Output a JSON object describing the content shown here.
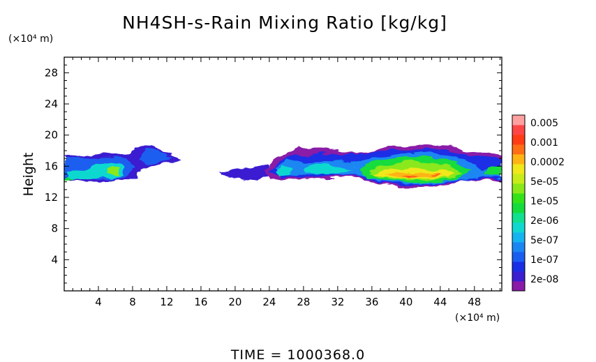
{
  "chart_data": {
    "type": "heatmap",
    "title": "NH4SH-s-Rain Mixing Ratio [kg/kg]",
    "xlabel": "",
    "ylabel": "Height",
    "x_unit": "(×10⁴ m)",
    "y_unit": "(×10⁴ m)",
    "xlim": [
      0,
      51.2
    ],
    "ylim": [
      0,
      30
    ],
    "xticks": [
      4,
      8,
      12,
      16,
      20,
      24,
      28,
      32,
      36,
      40,
      44,
      48
    ],
    "yticks": [
      4,
      8,
      12,
      16,
      20,
      24,
      28
    ],
    "footer": "TIME = 1000368.0",
    "colorbar": {
      "labels": [
        "0.005",
        "0.001",
        "0.0002",
        "5e-05",
        "1e-05",
        "2e-06",
        "5e-07",
        "1e-07",
        "2e-08"
      ],
      "levels": [
        2e-08,
        5e-08,
        1e-07,
        2e-07,
        5e-07,
        1e-06,
        2e-06,
        5e-06,
        1e-05,
        2e-05,
        5e-05,
        0.0001,
        0.0002,
        0.0005,
        0.001,
        0.002,
        0.005
      ],
      "colors": [
        "#8a1aa8",
        "#3a1ed0",
        "#1a2ee6",
        "#1a5ef0",
        "#1a86f2",
        "#14b4f0",
        "#10d8d0",
        "#10e090",
        "#14dc3c",
        "#34e21a",
        "#8ae81a",
        "#c8ec1a",
        "#f0e81a",
        "#ffb414",
        "#ff6e14",
        "#ff3c14",
        "#ff4646",
        "#ffa0a0"
      ]
    },
    "regions": [
      {
        "x": [
          0,
          13.6
        ],
        "y": [
          14,
          18.4
        ],
        "min": "2e-08",
        "max": "5e-05"
      },
      {
        "x": [
          18,
          24
        ],
        "y": [
          14,
          16
        ],
        "min": "2e-08",
        "max": "1e-07"
      },
      {
        "x": [
          23.5,
          51.2
        ],
        "y": [
          13.2,
          18.8
        ],
        "min": "2e-08",
        "max": "0.001"
      }
    ]
  }
}
